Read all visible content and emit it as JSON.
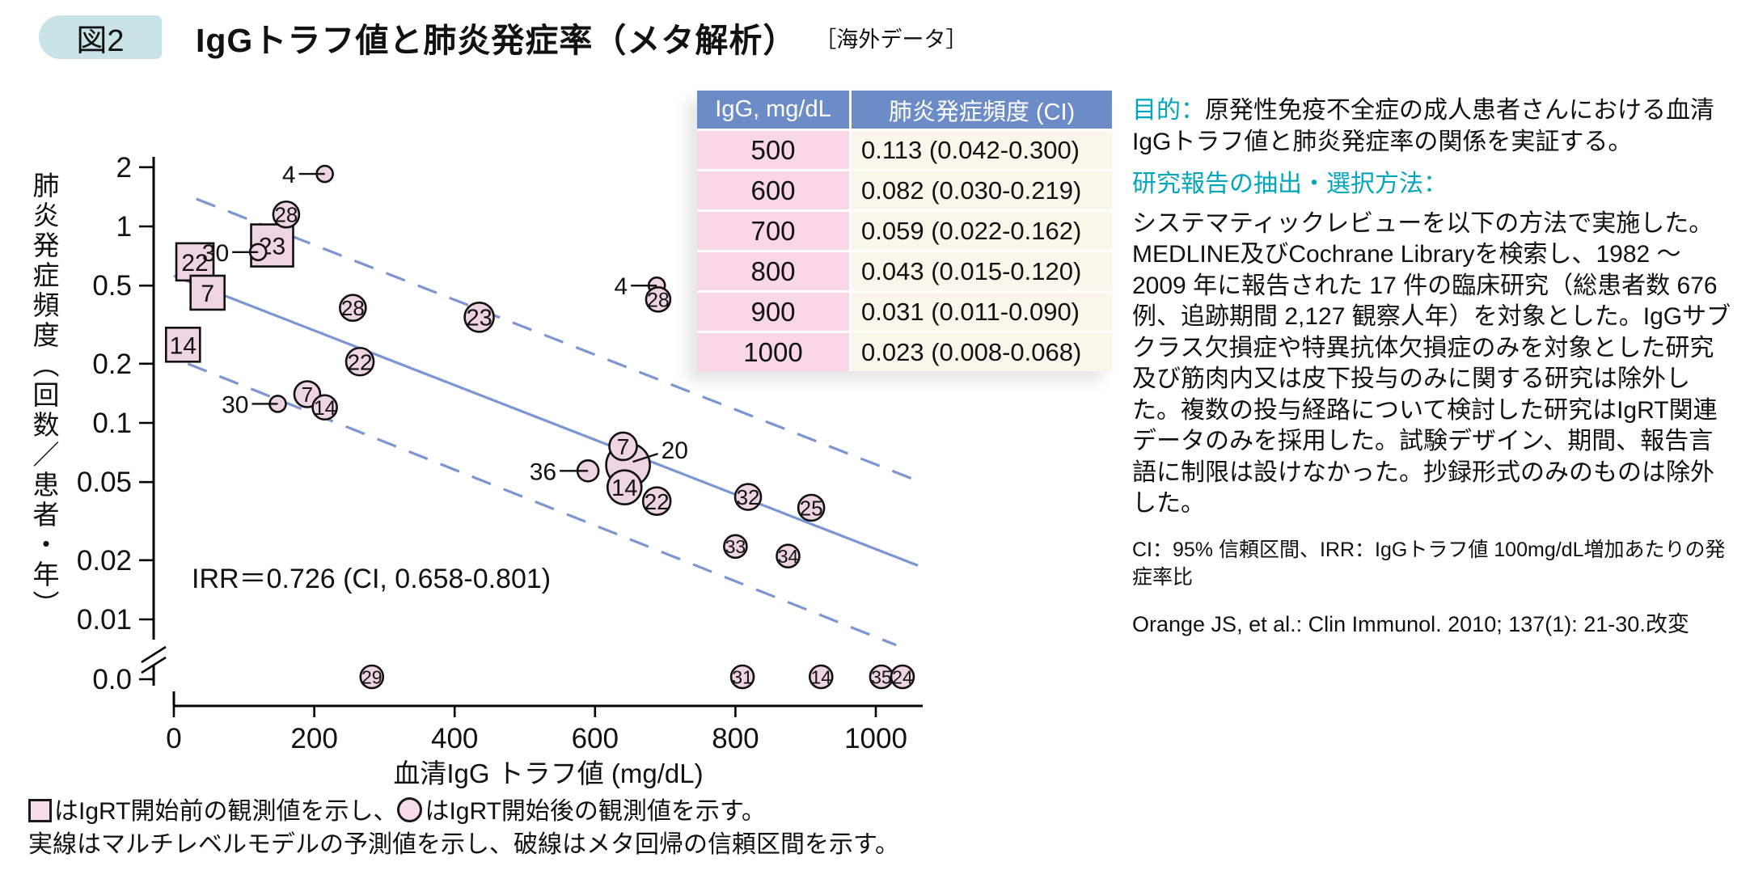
{
  "header": {
    "badge": "図2",
    "title": "IgGトラフ値と肺炎発症率（メタ解析）",
    "subtitle": "［海外データ］"
  },
  "chart_data": {
    "type": "scatter",
    "title": "IgGトラフ値と肺炎発症率（メタ解析）",
    "xlabel": "血清IgG トラフ値 (mg/dL)",
    "ylabel": "肺炎発症頻度（回数／患者・年）",
    "x_ticks": [
      0,
      200,
      400,
      600,
      800,
      1000
    ],
    "xlim": [
      0,
      1065
    ],
    "y_scale": "log",
    "y_ticks": [
      "2",
      "1",
      "0.5",
      "0.2",
      "0.1",
      "0.05",
      "0.02",
      "0.01"
    ],
    "y_axis_break_label": "0.0",
    "annotation": "IRR＝0.726 (CI, 0.658-0.801)",
    "series": [
      {
        "name": "IgRT開始前の観測値",
        "marker": "square",
        "points": [
          {
            "label": "22",
            "x": 30,
            "y": 0.66,
            "r": 23
          },
          {
            "label": "7",
            "x": 48,
            "y": 0.46,
            "r": 21
          },
          {
            "label": "14",
            "x": 13,
            "y": 0.25,
            "r": 21
          },
          {
            "label": "23",
            "x": 140,
            "y": 0.8,
            "r": 26
          }
        ]
      },
      {
        "name": "IgRT開始後の観測値",
        "marker": "circle",
        "points": [
          {
            "label": "4",
            "x": 215,
            "y": 1.85,
            "r": 10,
            "out": "left"
          },
          {
            "label": "28",
            "x": 160,
            "y": 1.15,
            "r": 16
          },
          {
            "label": "30",
            "x": 120,
            "y": 0.74,
            "r": 10,
            "out": "left"
          },
          {
            "label": "28",
            "x": 255,
            "y": 0.385,
            "r": 16
          },
          {
            "label": "23",
            "x": 435,
            "y": 0.345,
            "r": 18
          },
          {
            "label": "4",
            "x": 688,
            "y": 0.5,
            "r": 10,
            "out": "left"
          },
          {
            "label": "28",
            "x": 690,
            "y": 0.425,
            "r": 15
          },
          {
            "label": "22",
            "x": 265,
            "y": 0.205,
            "r": 17
          },
          {
            "label": "30",
            "x": 148,
            "y": 0.125,
            "r": 10,
            "out": "left"
          },
          {
            "label": "7",
            "x": 190,
            "y": 0.14,
            "r": 16
          },
          {
            "label": "14",
            "x": 215,
            "y": 0.12,
            "r": 15
          },
          {
            "label": "36",
            "x": 590,
            "y": 0.057,
            "r": 13,
            "out": "left"
          },
          {
            "label": "20",
            "x": 647,
            "y": 0.061,
            "r": 27,
            "out": "right"
          },
          {
            "label": "7",
            "x": 640,
            "y": 0.076,
            "r": 17
          },
          {
            "label": "14",
            "x": 642,
            "y": 0.047,
            "r": 21
          },
          {
            "label": "22",
            "x": 688,
            "y": 0.04,
            "r": 17
          },
          {
            "label": "32",
            "x": 818,
            "y": 0.042,
            "r": 16
          },
          {
            "label": "25",
            "x": 908,
            "y": 0.037,
            "r": 16
          },
          {
            "label": "33",
            "x": 800,
            "y": 0.0235,
            "r": 14
          },
          {
            "label": "34",
            "x": 875,
            "y": 0.021,
            "r": 14
          },
          {
            "label": "29",
            "x": 282,
            "y": 0,
            "r": 14
          },
          {
            "label": "31",
            "x": 810,
            "y": 0,
            "r": 14
          },
          {
            "label": "14",
            "x": 922,
            "y": 0,
            "r": 14
          },
          {
            "label": "35",
            "x": 1008,
            "y": 0,
            "r": 14
          },
          {
            "label": "24",
            "x": 1038,
            "y": 0,
            "r": 14
          }
        ]
      }
    ],
    "fit_line": {
      "name": "マルチレベルモデルの予測値",
      "points": [
        [
          0,
          0.56
        ],
        [
          1060,
          0.0188
        ]
      ]
    },
    "ci_upper": {
      "name": "メタ回帰の信頼区間（上限）",
      "points": [
        [
          32,
          1.38
        ],
        [
          1058,
          0.051
        ]
      ]
    },
    "ci_lower": {
      "name": "メタ回帰の信頼区間（下限）",
      "points": [
        [
          20,
          0.2
        ],
        [
          1029,
          0.0074
        ]
      ]
    }
  },
  "table": {
    "headers": [
      "IgG, mg/dL",
      "肺炎発症頻度 (CI)"
    ],
    "rows": [
      [
        "500",
        "0.113 (0.042-0.300)"
      ],
      [
        "600",
        "0.082 (0.030-0.219)"
      ],
      [
        "700",
        "0.059 (0.022-0.162)"
      ],
      [
        "800",
        "0.043 (0.015-0.120)"
      ],
      [
        "900",
        "0.031 (0.011-0.090)"
      ],
      [
        "1000",
        "0.023 (0.008-0.068)"
      ]
    ]
  },
  "aside": {
    "purpose_label": "目的：",
    "purpose_text": "原発性免疫不全症の成人患者さんにおける血清IgGトラフ値と肺炎発症率の関係を実証する。",
    "methods_heading": "研究報告の抽出・選択方法：",
    "methods_text": "システマティックレビューを以下の方法で実施した。MEDLINE及びCochrane Libraryを検索し、1982 ～ 2009 年に報告された 17 件の臨床研究（総患者数 676 例、追跡期間 2,127 観察人年）を対象とした。IgGサブクラス欠損症や特異抗体欠損症のみを対象とした研究及び筋肉内又は皮下投与のみに関する研究は除外した。複数の投与経路について検討した研究はIgRT関連データのみを採用した。試験デザイン、期間、報告言語に制限は設けなかった。抄録形式のみのものは除外した。",
    "ci_note": "CI：95% 信頼区間、IRR：IgGトラフ値 100mg/dL増加あたりの発症率比",
    "citation": "Orange JS, et al.: Clin Immunol. 2010; 137(1): 21-30.改変"
  },
  "legend": {
    "line1_pre": "はIgRT開始前の観測値を示し、",
    "line1_post": "はIgRT開始後の観測値を示す。",
    "line2": "実線はマルチレベルモデルの予測値を示し、破線はメタ回帰の信頼区間を示す。"
  },
  "colors": {
    "accent_cyan": "#00A5BE",
    "badge_bg": "#C9E4E6",
    "table_header_bg": "#6C8CC7",
    "table_col1_bg": "#F9D7E7",
    "table_col2_bg": "#FAF6E9",
    "marker_fill": "#EFD4E1",
    "legend_swatch_fill": "#F8DCEA",
    "line_blue": "#7B96D2",
    "text": "#111111"
  }
}
